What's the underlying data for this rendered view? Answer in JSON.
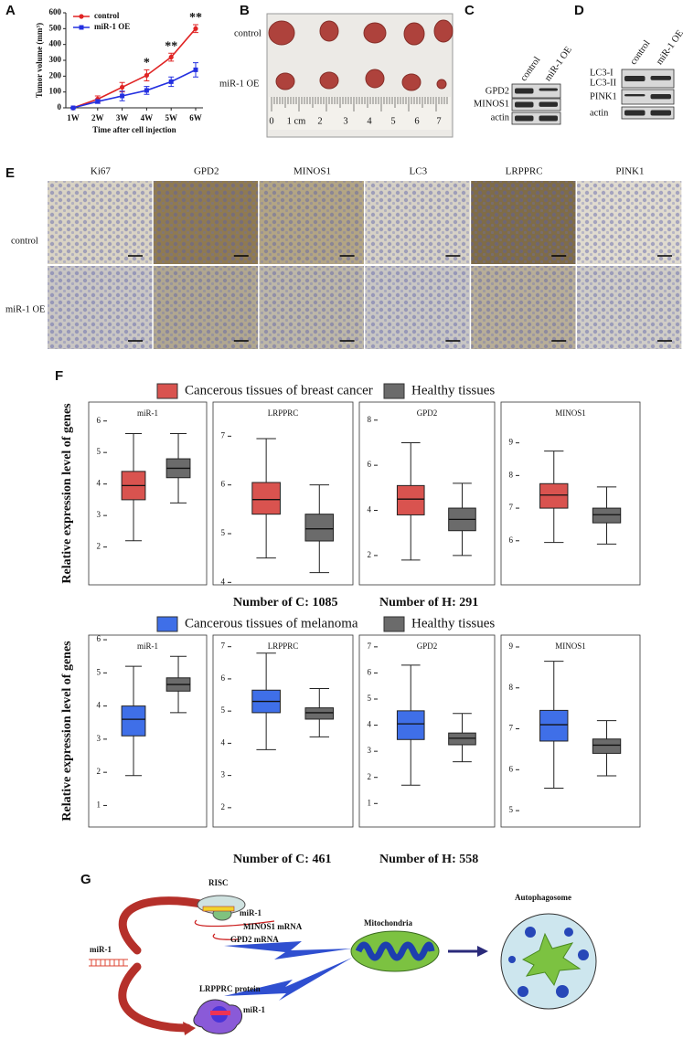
{
  "panel_labels": [
    "A",
    "B",
    "C",
    "D",
    "E",
    "F",
    "G"
  ],
  "chart_data": [
    {
      "type": "line",
      "ylabel": "Tumor volume (mm³)",
      "xlabel": "Time after cell injection",
      "categories": [
        "1W",
        "2W",
        "3W",
        "4W",
        "5W",
        "6W"
      ],
      "ylim": [
        0,
        600
      ],
      "yticks": [
        0,
        100,
        200,
        300,
        400,
        500,
        600
      ],
      "series": [
        {
          "name": "control",
          "color": "#e02424",
          "marker": "circle",
          "values": [
            0,
            55,
            130,
            205,
            320,
            500
          ],
          "errors": [
            3,
            20,
            30,
            35,
            25,
            25
          ]
        },
        {
          "name": "miR-1 OE",
          "color": "#2430e0",
          "marker": "square",
          "values": [
            0,
            40,
            75,
            110,
            165,
            240
          ],
          "errors": [
            3,
            12,
            30,
            25,
            30,
            45
          ]
        }
      ],
      "annotations": [
        {
          "text": "*",
          "category": "4W"
        },
        {
          "text": "**",
          "category": "5W"
        },
        {
          "text": "**",
          "category": "6W"
        }
      ]
    },
    {
      "type": "box",
      "title": "miR-1",
      "ylim": [
        0.8,
        6.6
      ],
      "yticks": [
        2,
        3,
        4,
        5,
        6
      ],
      "boxes": [
        {
          "color": "#d9534f",
          "whisker_low": 2.2,
          "q1": 3.5,
          "median": 3.95,
          "q3": 4.4,
          "whisker_high": 5.6
        },
        {
          "color": "#6b6b6b",
          "whisker_low": 3.4,
          "q1": 4.2,
          "median": 4.5,
          "q3": 4.8,
          "whisker_high": 5.6
        }
      ]
    },
    {
      "type": "box",
      "title": "LRPPRC",
      "ylim": [
        3.95,
        7.7
      ],
      "yticks": [
        4,
        5,
        6,
        7
      ],
      "boxes": [
        {
          "color": "#d9534f",
          "whisker_low": 4.5,
          "q1": 5.4,
          "median": 5.7,
          "q3": 6.05,
          "whisker_high": 6.95
        },
        {
          "color": "#6b6b6b",
          "whisker_low": 4.2,
          "q1": 4.85,
          "median": 5.1,
          "q3": 5.4,
          "whisker_high": 6.0
        }
      ]
    },
    {
      "type": "box",
      "title": "GPD2",
      "ylim": [
        0.7,
        8.8
      ],
      "yticks": [
        2,
        4,
        6,
        8
      ],
      "boxes": [
        {
          "color": "#d9534f",
          "whisker_low": 1.8,
          "q1": 3.8,
          "median": 4.5,
          "q3": 5.1,
          "whisker_high": 7.0
        },
        {
          "color": "#6b6b6b",
          "whisker_low": 2.0,
          "q1": 3.1,
          "median": 3.6,
          "q3": 4.1,
          "whisker_high": 5.2
        }
      ]
    },
    {
      "type": "box",
      "title": "MINOS1",
      "ylim": [
        4.65,
        10.25
      ],
      "yticks": [
        6,
        7,
        8,
        9
      ],
      "boxes": [
        {
          "color": "#d9534f",
          "whisker_low": 5.95,
          "q1": 7.0,
          "median": 7.4,
          "q3": 7.75,
          "whisker_high": 8.75
        },
        {
          "color": "#6b6b6b",
          "whisker_low": 5.9,
          "q1": 6.55,
          "median": 6.8,
          "q3": 7.0,
          "whisker_high": 7.65
        }
      ]
    },
    {
      "type": "box",
      "title": "miR-1",
      "ylim": [
        0.35,
        6.14
      ],
      "yticks": [
        1,
        2,
        3,
        4,
        5,
        6
      ],
      "boxes": [
        {
          "color": "#3f6fe8",
          "whisker_low": 1.9,
          "q1": 3.1,
          "median": 3.6,
          "q3": 4.0,
          "whisker_high": 5.2
        },
        {
          "color": "#6b6b6b",
          "whisker_low": 3.8,
          "q1": 4.45,
          "median": 4.65,
          "q3": 4.85,
          "whisker_high": 5.5
        }
      ]
    },
    {
      "type": "box",
      "title": "LRPPRC",
      "ylim": [
        1.4,
        7.36
      ],
      "yticks": [
        2,
        3,
        4,
        5,
        6,
        7
      ],
      "boxes": [
        {
          "color": "#3f6fe8",
          "whisker_low": 3.8,
          "q1": 4.95,
          "median": 5.3,
          "q3": 5.65,
          "whisker_high": 6.8
        },
        {
          "color": "#6b6b6b",
          "whisker_low": 4.2,
          "q1": 4.75,
          "median": 4.95,
          "q3": 5.1,
          "whisker_high": 5.7
        }
      ]
    },
    {
      "type": "box",
      "title": "GPD2",
      "ylim": [
        0.1,
        7.45
      ],
      "yticks": [
        1,
        2,
        3,
        4,
        5,
        6,
        7
      ],
      "boxes": [
        {
          "color": "#3f6fe8",
          "whisker_low": 1.7,
          "q1": 3.45,
          "median": 4.05,
          "q3": 4.55,
          "whisker_high": 6.3
        },
        {
          "color": "#6b6b6b",
          "whisker_low": 2.6,
          "q1": 3.25,
          "median": 3.5,
          "q3": 3.7,
          "whisker_high": 4.45
        }
      ]
    },
    {
      "type": "box",
      "title": "MINOS1",
      "ylim": [
        4.6,
        9.29
      ],
      "yticks": [
        5,
        6,
        7,
        8,
        9
      ],
      "boxes": [
        {
          "color": "#3f6fe8",
          "whisker_low": 5.55,
          "q1": 6.7,
          "median": 7.1,
          "q3": 7.45,
          "whisker_high": 8.65
        },
        {
          "color": "#6b6b6b",
          "whisker_low": 5.85,
          "q1": 6.4,
          "median": 6.6,
          "q3": 6.75,
          "whisker_high": 7.2
        }
      ]
    }
  ],
  "panel_b": {
    "row_labels": [
      "control",
      "miR-1 OE"
    ],
    "ruler_labels": [
      "0",
      "1 cm",
      "2",
      "3",
      "4",
      "5",
      "6",
      "7"
    ]
  },
  "panel_c": {
    "lanes": [
      "control",
      "miR-1 OE"
    ],
    "bands": [
      "GPD2",
      "MINOS1",
      "actin"
    ]
  },
  "panel_d": {
    "lanes": [
      "control",
      "miR-1 OE"
    ],
    "bands": [
      "LC3-I",
      "LC3-II",
      "PINK1",
      "actin"
    ]
  },
  "panel_e": {
    "columns": [
      "Ki67",
      "GPD2",
      "MINOS1",
      "LC3",
      "LRPPRC",
      "PINK1"
    ],
    "rows": [
      "control",
      "miR-1 OE"
    ]
  },
  "panel_f": {
    "ylabel": "Relative expression level of genes",
    "groups": [
      {
        "legend": [
          {
            "name": "Cancerous tissues of breast cancer",
            "color": "#d9534f"
          },
          {
            "name": "Healthy tissues",
            "color": "#6b6b6b"
          }
        ],
        "counts": [
          "Number of C: 1085",
          "Number of H: 291"
        ]
      },
      {
        "legend": [
          {
            "name": "Cancerous tissues of melanoma",
            "color": "#3f6fe8"
          },
          {
            "name": "Healthy tissues",
            "color": "#6b6b6b"
          }
        ],
        "counts": [
          "Number of C: 461",
          "Number of H: 558"
        ]
      }
    ]
  },
  "panel_g": {
    "risc": "RISC",
    "risc_mir1": "miR-1",
    "minos1": "MINOS1 mRNA",
    "gpd2": "GPD2 mRNA",
    "mir1": "miR-1",
    "mito": "Mitochondria",
    "auto": "Autophagosome",
    "lrpprc": "LRPPRC protein",
    "protein_mir1": "miR-1"
  }
}
